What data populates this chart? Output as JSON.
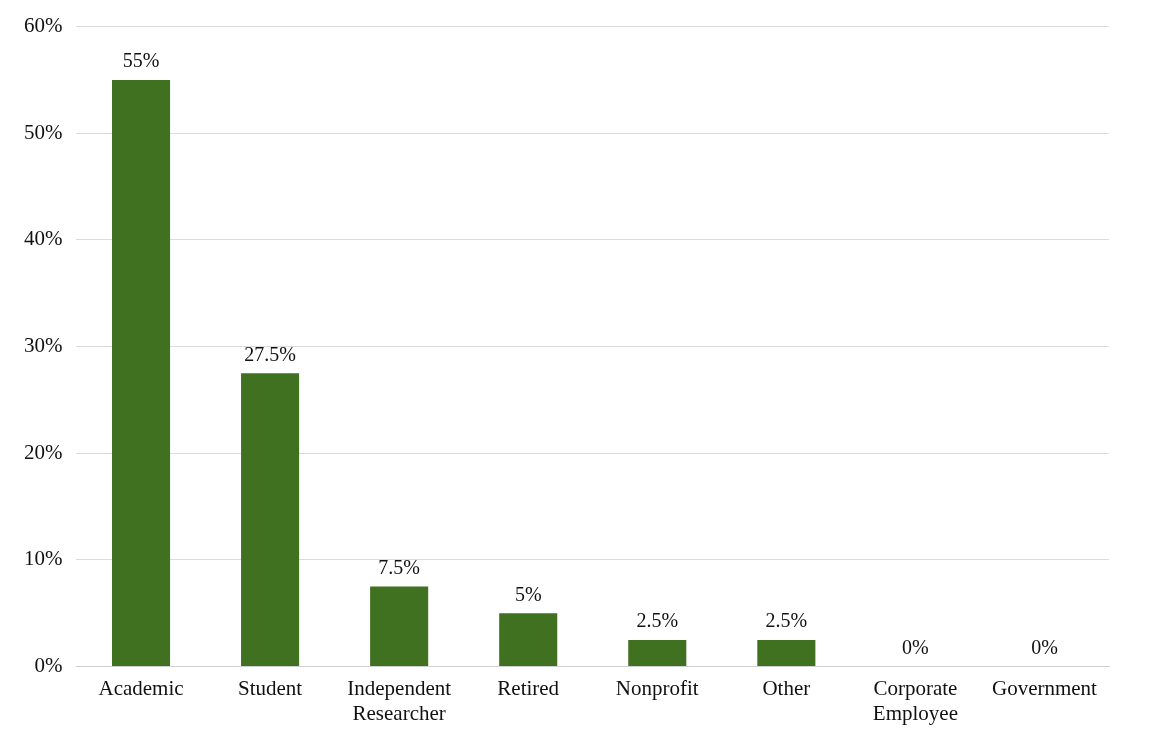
{
  "chart_data": {
    "type": "bar",
    "categories": [
      "Academic",
      "Student",
      "Independent Researcher",
      "Retired",
      "Nonprofit",
      "Other",
      "Corporate Employee",
      "Government"
    ],
    "values": [
      55,
      27.5,
      7.5,
      5,
      2.5,
      2.5,
      0,
      0
    ],
    "value_labels": [
      "55%",
      "27.5%",
      "7.5%",
      "5%",
      "2.5%",
      "2.5%",
      "0%",
      "0%"
    ],
    "color": "#3f7120",
    "ylim": [
      0,
      60
    ],
    "yticks": [
      {
        "value": 0,
        "label": "0%"
      },
      {
        "value": 10,
        "label": "10%"
      },
      {
        "value": 20,
        "label": "20%"
      },
      {
        "value": 30,
        "label": "30%"
      },
      {
        "value": 40,
        "label": "40%"
      },
      {
        "value": 50,
        "label": "50%"
      },
      {
        "value": 60,
        "label": "60%"
      }
    ],
    "grid": "y",
    "legend": false
  }
}
